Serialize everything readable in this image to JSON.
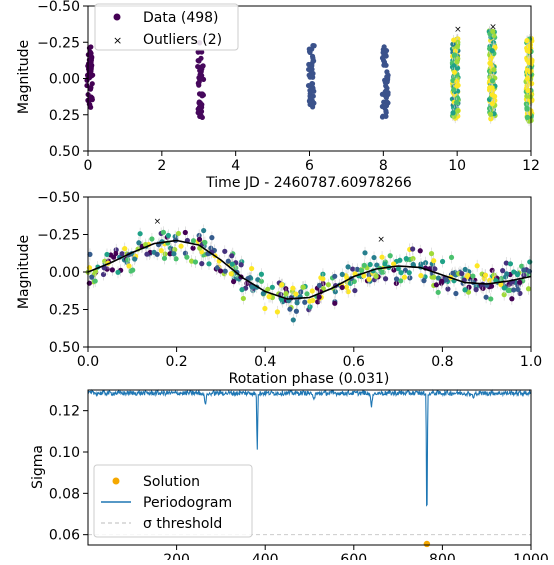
{
  "chart_data": [
    {
      "type": "scatter",
      "xlabel": "Time JD - 2460787.60978266",
      "ylabel": "Magnitude",
      "xlim": [
        0,
        12
      ],
      "ylim": [
        0.5,
        -0.5
      ],
      "y_inverted": true,
      "xticks": [
        "0",
        "2",
        "4",
        "6",
        "8",
        "10",
        "12"
      ],
      "yticks": [
        "−0.50",
        "−0.25",
        "0.00",
        "0.25",
        "0.50"
      ],
      "xtick_values": [
        0,
        2,
        4,
        6,
        8,
        10,
        12
      ],
      "ytick_values": [
        -0.5,
        -0.25,
        0,
        0.25,
        0.5
      ],
      "legend_position": "upper-left",
      "legend": [
        {
          "label": "Data (498)",
          "marker": "dot",
          "color": "#440154"
        },
        {
          "label": "Outliers (2)",
          "marker": "x",
          "color": "#9b59b6"
        }
      ],
      "nights": [
        {
          "x": 0.05,
          "y_min": -0.22,
          "y_max": 0.2,
          "color": "#440154"
        },
        {
          "x": 3.05,
          "y_min": -0.25,
          "y_max": 0.27,
          "color": "#46085c"
        },
        {
          "x": 6.05,
          "y_min": -0.24,
          "y_max": 0.2,
          "color": "#3b528b"
        },
        {
          "x": 8.05,
          "y_min": -0.22,
          "y_max": 0.27,
          "color": "#3b528b"
        },
        {
          "x": 9.95,
          "y_min": -0.28,
          "y_max": 0.28,
          "color": "#21918c"
        },
        {
          "x": 10.95,
          "y_min": -0.33,
          "y_max": 0.28,
          "color": "#35b779"
        },
        {
          "x": 11.95,
          "y_min": -0.28,
          "y_max": 0.3,
          "color": "#b5de2b"
        }
      ],
      "outliers": [
        {
          "x": 10.0,
          "y": -0.34
        },
        {
          "x": 10.95,
          "y": -0.36
        }
      ]
    },
    {
      "type": "scatter",
      "xlabel": "Rotation phase (0.031)",
      "ylabel": "Magnitude",
      "xlim": [
        0,
        1
      ],
      "ylim": [
        0.5,
        -0.5
      ],
      "y_inverted": true,
      "xticks": [
        "0.0",
        "0.2",
        "0.4",
        "0.6",
        "0.8",
        "1.0"
      ],
      "yticks": [
        "−0.50",
        "−0.25",
        "0.00",
        "0.25",
        "0.50"
      ],
      "xtick_values": [
        0,
        0.2,
        0.4,
        0.6,
        0.8,
        1.0
      ],
      "ytick_values": [
        -0.5,
        -0.25,
        0,
        0.25,
        0.5
      ],
      "model_curve": {
        "x": [
          0.0,
          0.05,
          0.1,
          0.15,
          0.2,
          0.25,
          0.3,
          0.35,
          0.4,
          0.45,
          0.5,
          0.55,
          0.6,
          0.65,
          0.7,
          0.75,
          0.8,
          0.85,
          0.9,
          0.95,
          1.0
        ],
        "y": [
          0.0,
          -0.06,
          -0.13,
          -0.19,
          -0.21,
          -0.18,
          -0.08,
          0.04,
          0.13,
          0.18,
          0.17,
          0.11,
          0.03,
          -0.02,
          -0.04,
          -0.03,
          0.02,
          0.07,
          0.08,
          0.06,
          0.03
        ]
      },
      "outliers": [
        {
          "x": 0.155,
          "y": -0.34
        },
        {
          "x": 0.66,
          "y": -0.22
        }
      ]
    },
    {
      "type": "line",
      "xlabel": "",
      "ylabel": "Sigma",
      "xlim": [
        0,
        1000
      ],
      "ylim": [
        0.055,
        0.13
      ],
      "xticks": [
        "200",
        "400",
        "600",
        "800",
        "1000"
      ],
      "yticks": [
        "0.06",
        "0.08",
        "0.10",
        "0.12"
      ],
      "xtick_values": [
        200,
        400,
        600,
        800,
        1000
      ],
      "ytick_values": [
        0.06,
        0.08,
        0.1,
        0.12
      ],
      "baseline": 0.1285,
      "dips": [
        {
          "x": 265,
          "y": 0.123
        },
        {
          "x": 382,
          "y": 0.0985
        },
        {
          "x": 510,
          "y": 0.125
        },
        {
          "x": 640,
          "y": 0.122
        },
        {
          "x": 765,
          "y": 0.0555
        },
        {
          "x": 870,
          "y": 0.126
        }
      ],
      "solution": {
        "x": 765,
        "y": 0.0555
      },
      "sigma_threshold": 0.06,
      "legend_position": "lower-left",
      "legend": [
        {
          "label": "Solution",
          "marker": "dot",
          "color": "#f5a800"
        },
        {
          "label": "Periodogram",
          "marker": "line",
          "color": "#1f77b4"
        },
        {
          "label": "σ threshold",
          "marker": "dashed",
          "color": "#bbbbbb"
        }
      ]
    }
  ]
}
